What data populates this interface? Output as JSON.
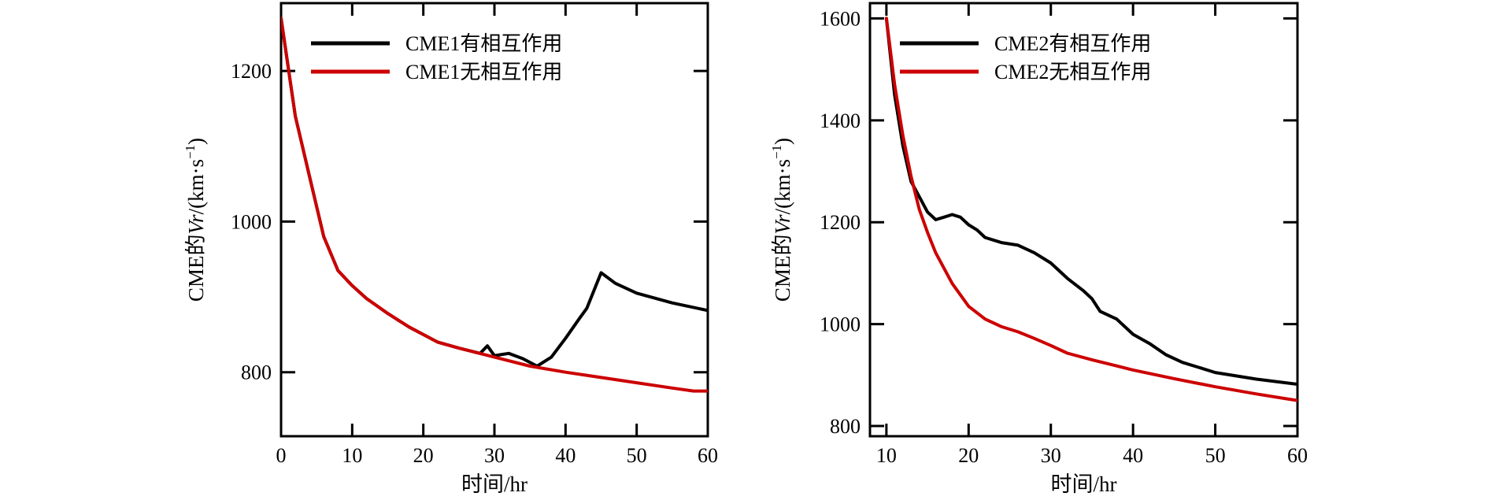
{
  "chart_data": [
    {
      "type": "line",
      "xlabel": "时间/hr",
      "ylabel_prefix": "CME的",
      "ylabel_var": "Vr",
      "ylabel_unit": "/(km·s",
      "ylabel_sup": "−1",
      "ylabel_close": ")",
      "xlim": [
        0,
        60
      ],
      "ylim": [
        715,
        1290
      ],
      "xticks": [
        0,
        10,
        20,
        30,
        40,
        50,
        60
      ],
      "xtick_labels": [
        "0",
        "10",
        "20",
        "30",
        "40",
        "50",
        "60"
      ],
      "yticks": [
        800,
        1000,
        1200
      ],
      "ytick_labels": [
        "800",
        "1000",
        "1200"
      ],
      "grid": false,
      "legend_position": "top",
      "series": [
        {
          "name": "CME1有相互作用",
          "color": "#000000",
          "points": [
            [
              0,
              1270
            ],
            [
              2,
              1140
            ],
            [
              4,
              1060
            ],
            [
              6,
              980
            ],
            [
              8,
              935
            ],
            [
              10,
              915
            ],
            [
              12,
              898
            ],
            [
              15,
              878
            ],
            [
              18,
              860
            ],
            [
              20,
              850
            ],
            [
              22,
              840
            ],
            [
              25,
              832
            ],
            [
              28,
              825
            ],
            [
              29,
              835
            ],
            [
              30,
              822
            ],
            [
              32,
              825
            ],
            [
              34,
              818
            ],
            [
              36,
              808
            ],
            [
              38,
              820
            ],
            [
              40,
              845
            ],
            [
              42,
              872
            ],
            [
              43,
              885
            ],
            [
              45,
              932
            ],
            [
              47,
              918
            ],
            [
              50,
              905
            ],
            [
              55,
              892
            ],
            [
              60,
              882
            ]
          ]
        },
        {
          "name": "CME1无相互作用",
          "color": "#cc0000",
          "points": [
            [
              0,
              1270
            ],
            [
              2,
              1140
            ],
            [
              4,
              1060
            ],
            [
              6,
              980
            ],
            [
              8,
              935
            ],
            [
              10,
              915
            ],
            [
              12,
              898
            ],
            [
              15,
              878
            ],
            [
              18,
              860
            ],
            [
              20,
              850
            ],
            [
              22,
              840
            ],
            [
              25,
              832
            ],
            [
              30,
              820
            ],
            [
              35,
              808
            ],
            [
              40,
              800
            ],
            [
              45,
              793
            ],
            [
              50,
              786
            ],
            [
              55,
              779
            ],
            [
              58,
              775
            ],
            [
              60,
              775
            ]
          ]
        }
      ]
    },
    {
      "type": "line",
      "xlabel": "时间/hr",
      "ylabel_prefix": "CME的",
      "ylabel_var": "Vr",
      "ylabel_unit": "/(km·s",
      "ylabel_sup": "−1",
      "ylabel_close": ")",
      "xlim": [
        8,
        60
      ],
      "ylim": [
        780,
        1630
      ],
      "xticks": [
        10,
        20,
        30,
        40,
        50,
        60
      ],
      "xtick_labels": [
        "10",
        "20",
        "30",
        "40",
        "50",
        "60"
      ],
      "yticks": [
        800,
        1000,
        1200,
        1400,
        1600
      ],
      "ytick_labels": [
        "800",
        "1000",
        "1200",
        "1400",
        "1600"
      ],
      "grid": false,
      "legend_position": "top",
      "series": [
        {
          "name": "CME2有相互作用",
          "color": "#000000",
          "points": [
            [
              10,
              1600
            ],
            [
              11,
              1450
            ],
            [
              12,
              1350
            ],
            [
              13,
              1280
            ],
            [
              14,
              1250
            ],
            [
              15,
              1220
            ],
            [
              16,
              1205
            ],
            [
              17,
              1210
            ],
            [
              18,
              1215
            ],
            [
              19,
              1210
            ],
            [
              20,
              1195
            ],
            [
              21,
              1185
            ],
            [
              22,
              1170
            ],
            [
              24,
              1160
            ],
            [
              26,
              1155
            ],
            [
              28,
              1140
            ],
            [
              30,
              1120
            ],
            [
              32,
              1090
            ],
            [
              34,
              1065
            ],
            [
              35,
              1050
            ],
            [
              36,
              1025
            ],
            [
              38,
              1010
            ],
            [
              40,
              980
            ],
            [
              42,
              962
            ],
            [
              44,
              940
            ],
            [
              46,
              925
            ],
            [
              48,
              915
            ],
            [
              50,
              905
            ],
            [
              55,
              892
            ],
            [
              60,
              882
            ]
          ]
        },
        {
          "name": "CME2无相互作用",
          "color": "#cc0000",
          "points": [
            [
              10,
              1600
            ],
            [
              11,
              1470
            ],
            [
              12,
              1370
            ],
            [
              13,
              1290
            ],
            [
              14,
              1225
            ],
            [
              15,
              1180
            ],
            [
              16,
              1140
            ],
            [
              18,
              1080
            ],
            [
              20,
              1035
            ],
            [
              22,
              1010
            ],
            [
              24,
              995
            ],
            [
              26,
              985
            ],
            [
              28,
              972
            ],
            [
              30,
              958
            ],
            [
              32,
              943
            ],
            [
              35,
              930
            ],
            [
              38,
              918
            ],
            [
              40,
              910
            ],
            [
              45,
              893
            ],
            [
              50,
              877
            ],
            [
              55,
              863
            ],
            [
              60,
              850
            ]
          ]
        }
      ]
    }
  ]
}
